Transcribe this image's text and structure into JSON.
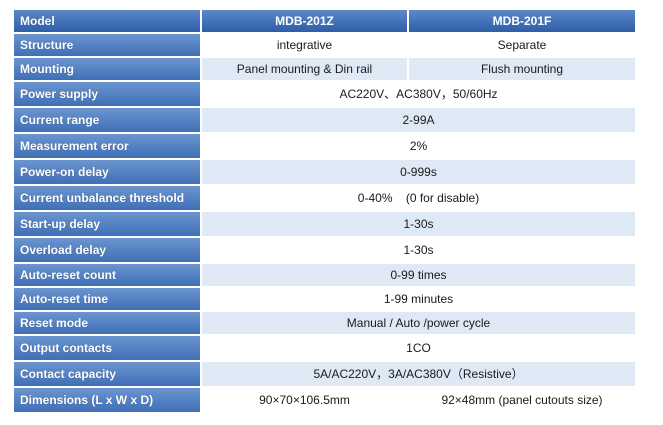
{
  "header": {
    "label": "Model",
    "col1": "MDB-201Z",
    "col2": "MDB-201F"
  },
  "rows": [
    {
      "label": "Structure",
      "v1": "integrative",
      "v2": "Separate"
    },
    {
      "label": "Mounting",
      "v1": "Panel mounting & Din rail",
      "v2": "Flush mounting"
    },
    {
      "label": "Power supply",
      "value": "AC220V、AC380V，50/60Hz"
    },
    {
      "label": "Current range",
      "value": "2-99A"
    },
    {
      "label": "Measurement error",
      "value": "2%"
    },
    {
      "label": "Power-on delay",
      "value": "0-999s"
    },
    {
      "label": "Current unbalance threshold",
      "value": "0-40%    (0 for disable)"
    },
    {
      "label": "Start-up delay",
      "value": "1-30s"
    },
    {
      "label": "Overload delay",
      "value": "1-30s"
    },
    {
      "label": "Auto-reset count",
      "value": "0-99 times"
    },
    {
      "label": "Auto-reset time",
      "value": "1-99 minutes"
    },
    {
      "label": "Reset mode",
      "value": "Manual / Auto /power cycle"
    },
    {
      "label": "Output contacts",
      "value": "1CO"
    },
    {
      "label": "Contact capacity",
      "value": "5A/AC220V，3A/AC380V（Resistive）"
    },
    {
      "label": "Dimensions (L x W x D)",
      "v1": "90×70×106.5mm",
      "v2": "92×48mm (panel cutouts size)"
    }
  ]
}
